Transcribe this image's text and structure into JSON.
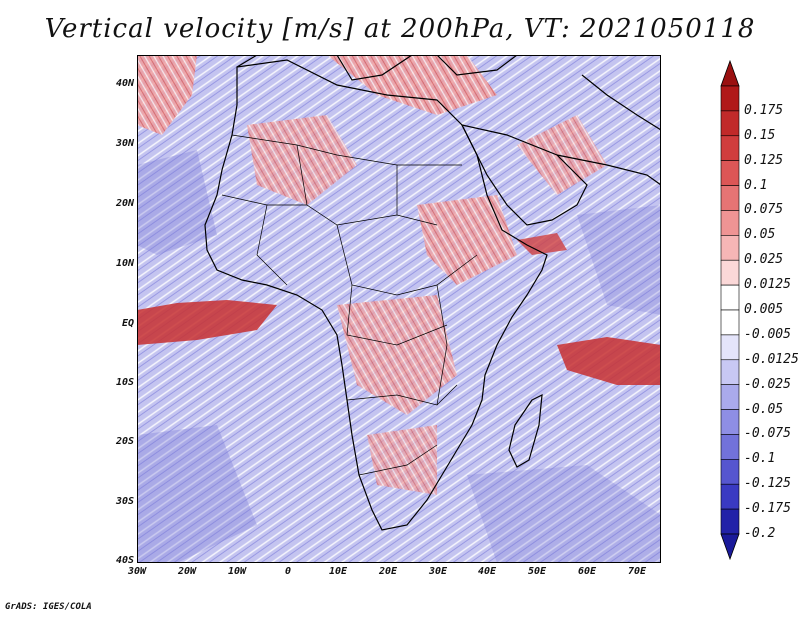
{
  "title": "Vertical velocity [m/s] at 200hPa, VT: 2021050118",
  "credit": "GrADS: IGES/COLA",
  "axes": {
    "lat_labels": [
      "40N",
      "30N",
      "20N",
      "10N",
      "EQ",
      "10S",
      "20S",
      "30S",
      "40S"
    ],
    "lon_labels": [
      "30W",
      "20W",
      "10W",
      "0",
      "10E",
      "20E",
      "30E",
      "40E",
      "50E",
      "60E",
      "70E"
    ]
  },
  "colorbar": {
    "labels": [
      "0.175",
      "0.15",
      "0.125",
      "0.1",
      "0.075",
      "0.05",
      "0.025",
      "0.0125",
      "0.005",
      "-0.005",
      "-0.0125",
      "-0.025",
      "-0.05",
      "-0.075",
      "-0.1",
      "-0.125",
      "-0.175",
      "-0.2"
    ],
    "colors": [
      "#b01818",
      "#c12a2a",
      "#d03d3d",
      "#dc5656",
      "#e67474",
      "#ef9494",
      "#f6b6b6",
      "#fbd8d8",
      "#ffffff",
      "#ffffff",
      "#e4e4fa",
      "#c8c8f4",
      "#aaaaec",
      "#8e8ee4",
      "#7272da",
      "#5656cf",
      "#3a3ac2",
      "#2222a8"
    ],
    "top_arrow_color": "#9a1010",
    "bottom_arrow_color": "#1a1a9a"
  },
  "palette": {
    "background_blue": "#b8b8ec",
    "strong_red": "#c83030",
    "light_red": "#f2a8a8",
    "coastline": "#000000"
  }
}
